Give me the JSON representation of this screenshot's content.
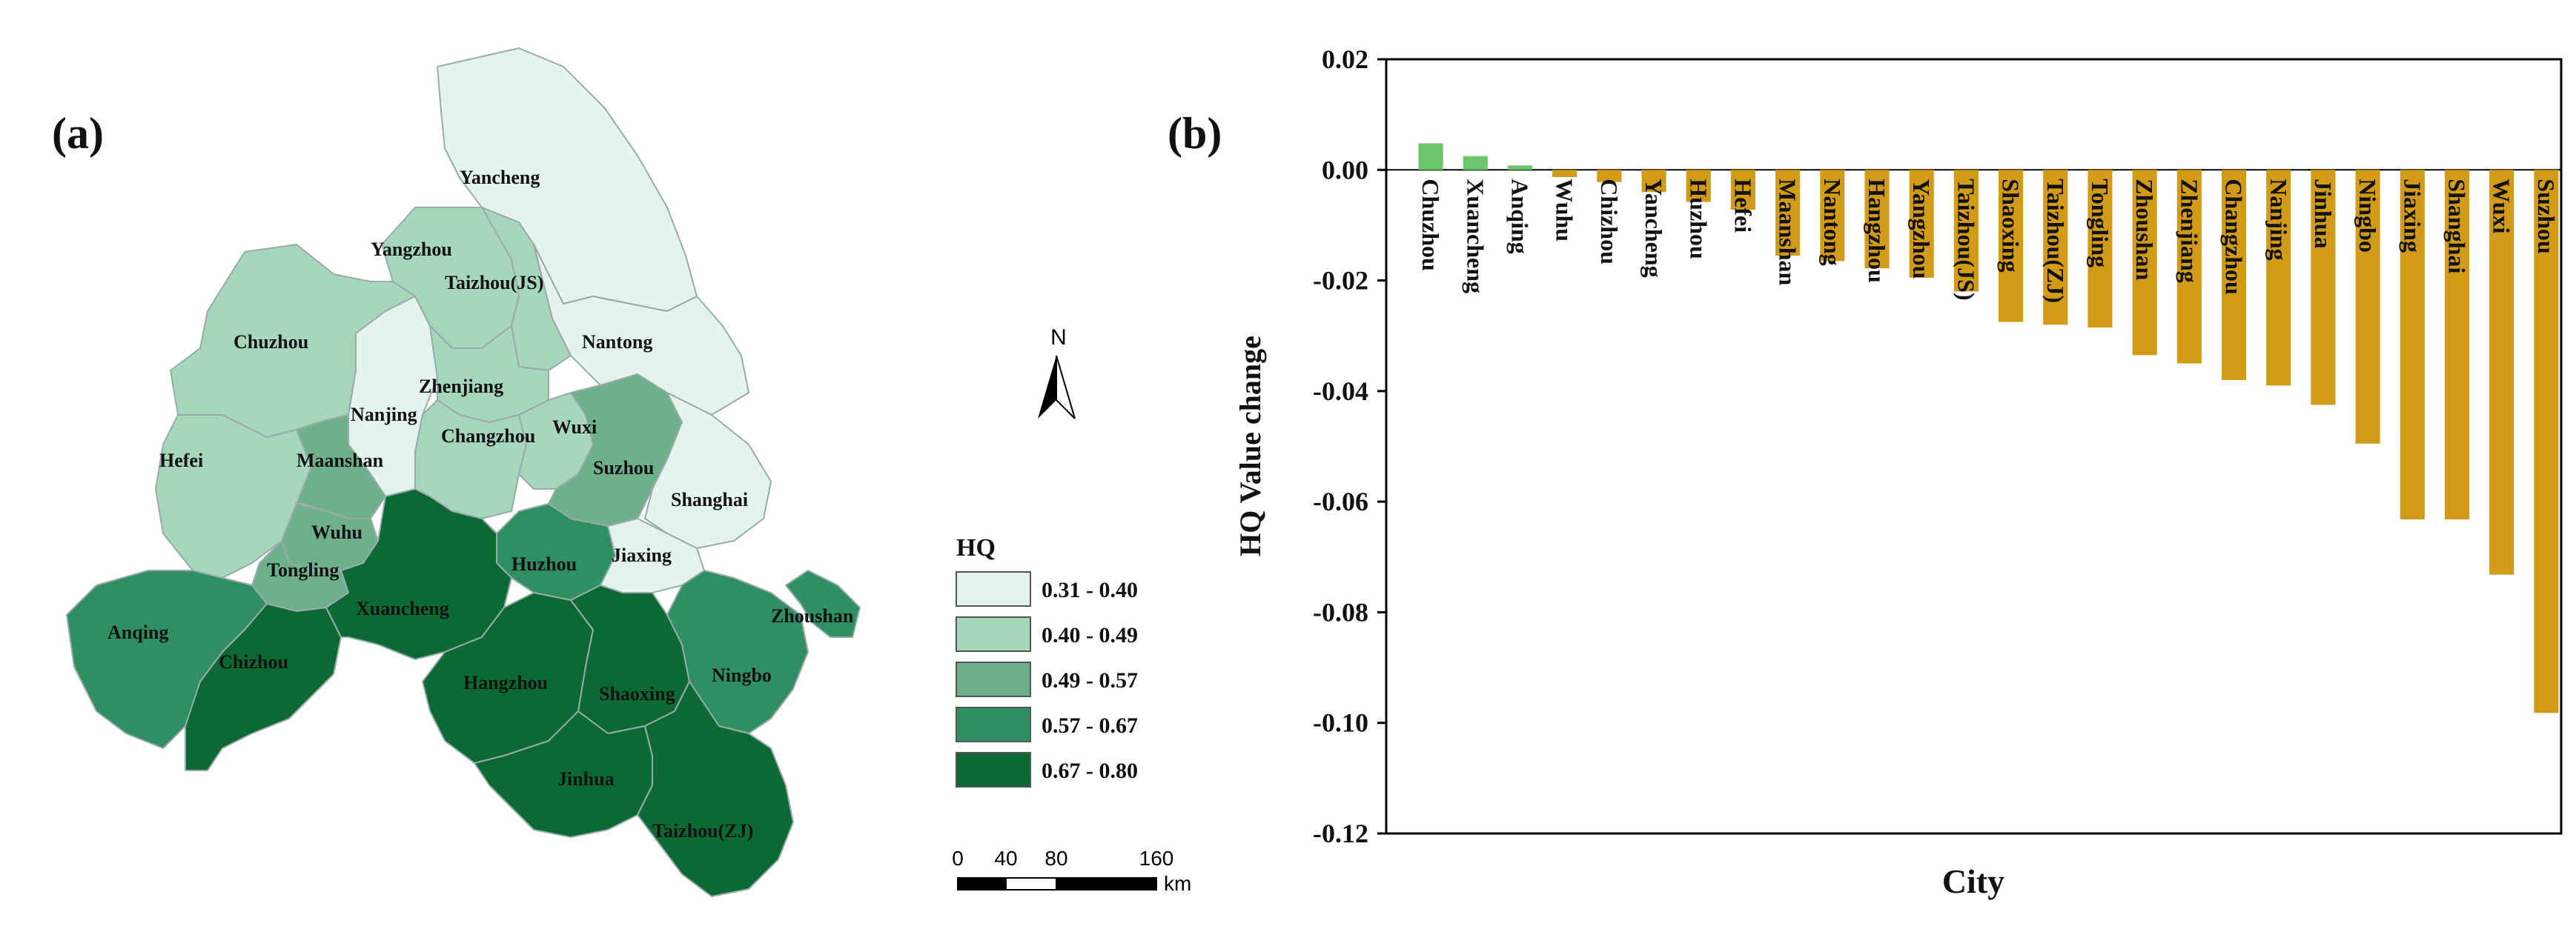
{
  "panel_a": {
    "label": "(a)",
    "north_label": "N",
    "legend": {
      "title": "HQ",
      "classes": [
        {
          "range": "0.31 - 0.40",
          "color": "#e2f4ec"
        },
        {
          "range": "0.40 - 0.49",
          "color": "#a6d6bc"
        },
        {
          "range": "0.49 - 0.57",
          "color": "#6fb08c"
        },
        {
          "range": "0.57 - 0.67",
          "color": "#2f8f62"
        },
        {
          "range": "0.67 - 0.80",
          "color": "#0b6a34"
        }
      ]
    },
    "scale_bar": {
      "ticks": [
        "0",
        "40",
        "80",
        "160"
      ],
      "unit": "km"
    },
    "cities": [
      {
        "name": "Yancheng",
        "class": 0
      },
      {
        "name": "Yangzhou",
        "class": 1
      },
      {
        "name": "Taizhou(JS)",
        "class": 1
      },
      {
        "name": "Nantong",
        "class": 0
      },
      {
        "name": "Chuzhou",
        "class": 1
      },
      {
        "name": "Zhenjiang",
        "class": 1
      },
      {
        "name": "Nanjing",
        "class": 0
      },
      {
        "name": "Changzhou",
        "class": 1
      },
      {
        "name": "Wuxi",
        "class": 1
      },
      {
        "name": "Suzhou",
        "class": 2
      },
      {
        "name": "Shanghai",
        "class": 0
      },
      {
        "name": "Hefei",
        "class": 1
      },
      {
        "name": "Maanshan",
        "class": 2
      },
      {
        "name": "Wuhu",
        "class": 2
      },
      {
        "name": "Tongling",
        "class": 2
      },
      {
        "name": "Huzhou",
        "class": 3
      },
      {
        "name": "Jiaxing",
        "class": 0
      },
      {
        "name": "Anqing",
        "class": 3
      },
      {
        "name": "Chizhou",
        "class": 4
      },
      {
        "name": "Xuancheng",
        "class": 4
      },
      {
        "name": "Hangzhou",
        "class": 4
      },
      {
        "name": "Shaoxing",
        "class": 4
      },
      {
        "name": "Ningbo",
        "class": 3
      },
      {
        "name": "Zhoushan",
        "class": 3
      },
      {
        "name": "Jinhua",
        "class": 4
      },
      {
        "name": "Taizhou(ZJ)",
        "class": 4
      }
    ]
  },
  "chart_data": {
    "type": "bar",
    "label": "(b)",
    "title": "",
    "xlabel": "City",
    "ylabel": "HQ Value change",
    "ylim": [
      -0.12,
      0.02
    ],
    "yticks": [
      "0.02",
      "0.00",
      "-0.02",
      "-0.04",
      "-0.06",
      "-0.08",
      "-0.10",
      "-0.12"
    ],
    "grid": false,
    "categories": [
      "Chuzhou",
      "Xuancheng",
      "Anqing",
      "Wuhu",
      "Chizhou",
      "Yancheng",
      "Huzhou",
      "Hefei",
      "Maanshan",
      "Nantong",
      "Hangzhou",
      "Yangzhou",
      "Taizhou(JS)",
      "Shaoxing",
      "Taizhou(ZJ)",
      "Tongling",
      "Zhoushan",
      "Zhenjiang",
      "Changzhou",
      "Nanjing",
      "Jinhua",
      "Ningbo",
      "Jiaxing",
      "Shanghai",
      "Wuxi",
      "Suzhou"
    ],
    "values": [
      0.0048,
      0.0025,
      0.0008,
      -0.0013,
      -0.0022,
      -0.004,
      -0.0058,
      -0.0072,
      -0.0155,
      -0.0165,
      -0.0178,
      -0.0195,
      -0.022,
      -0.0275,
      -0.028,
      -0.0285,
      -0.0335,
      -0.035,
      -0.038,
      -0.039,
      -0.0425,
      -0.0495,
      -0.0632,
      -0.0632,
      -0.0732,
      -0.0982
    ],
    "positive_color": "#6cc46c",
    "negative_color": "#d19a17"
  }
}
